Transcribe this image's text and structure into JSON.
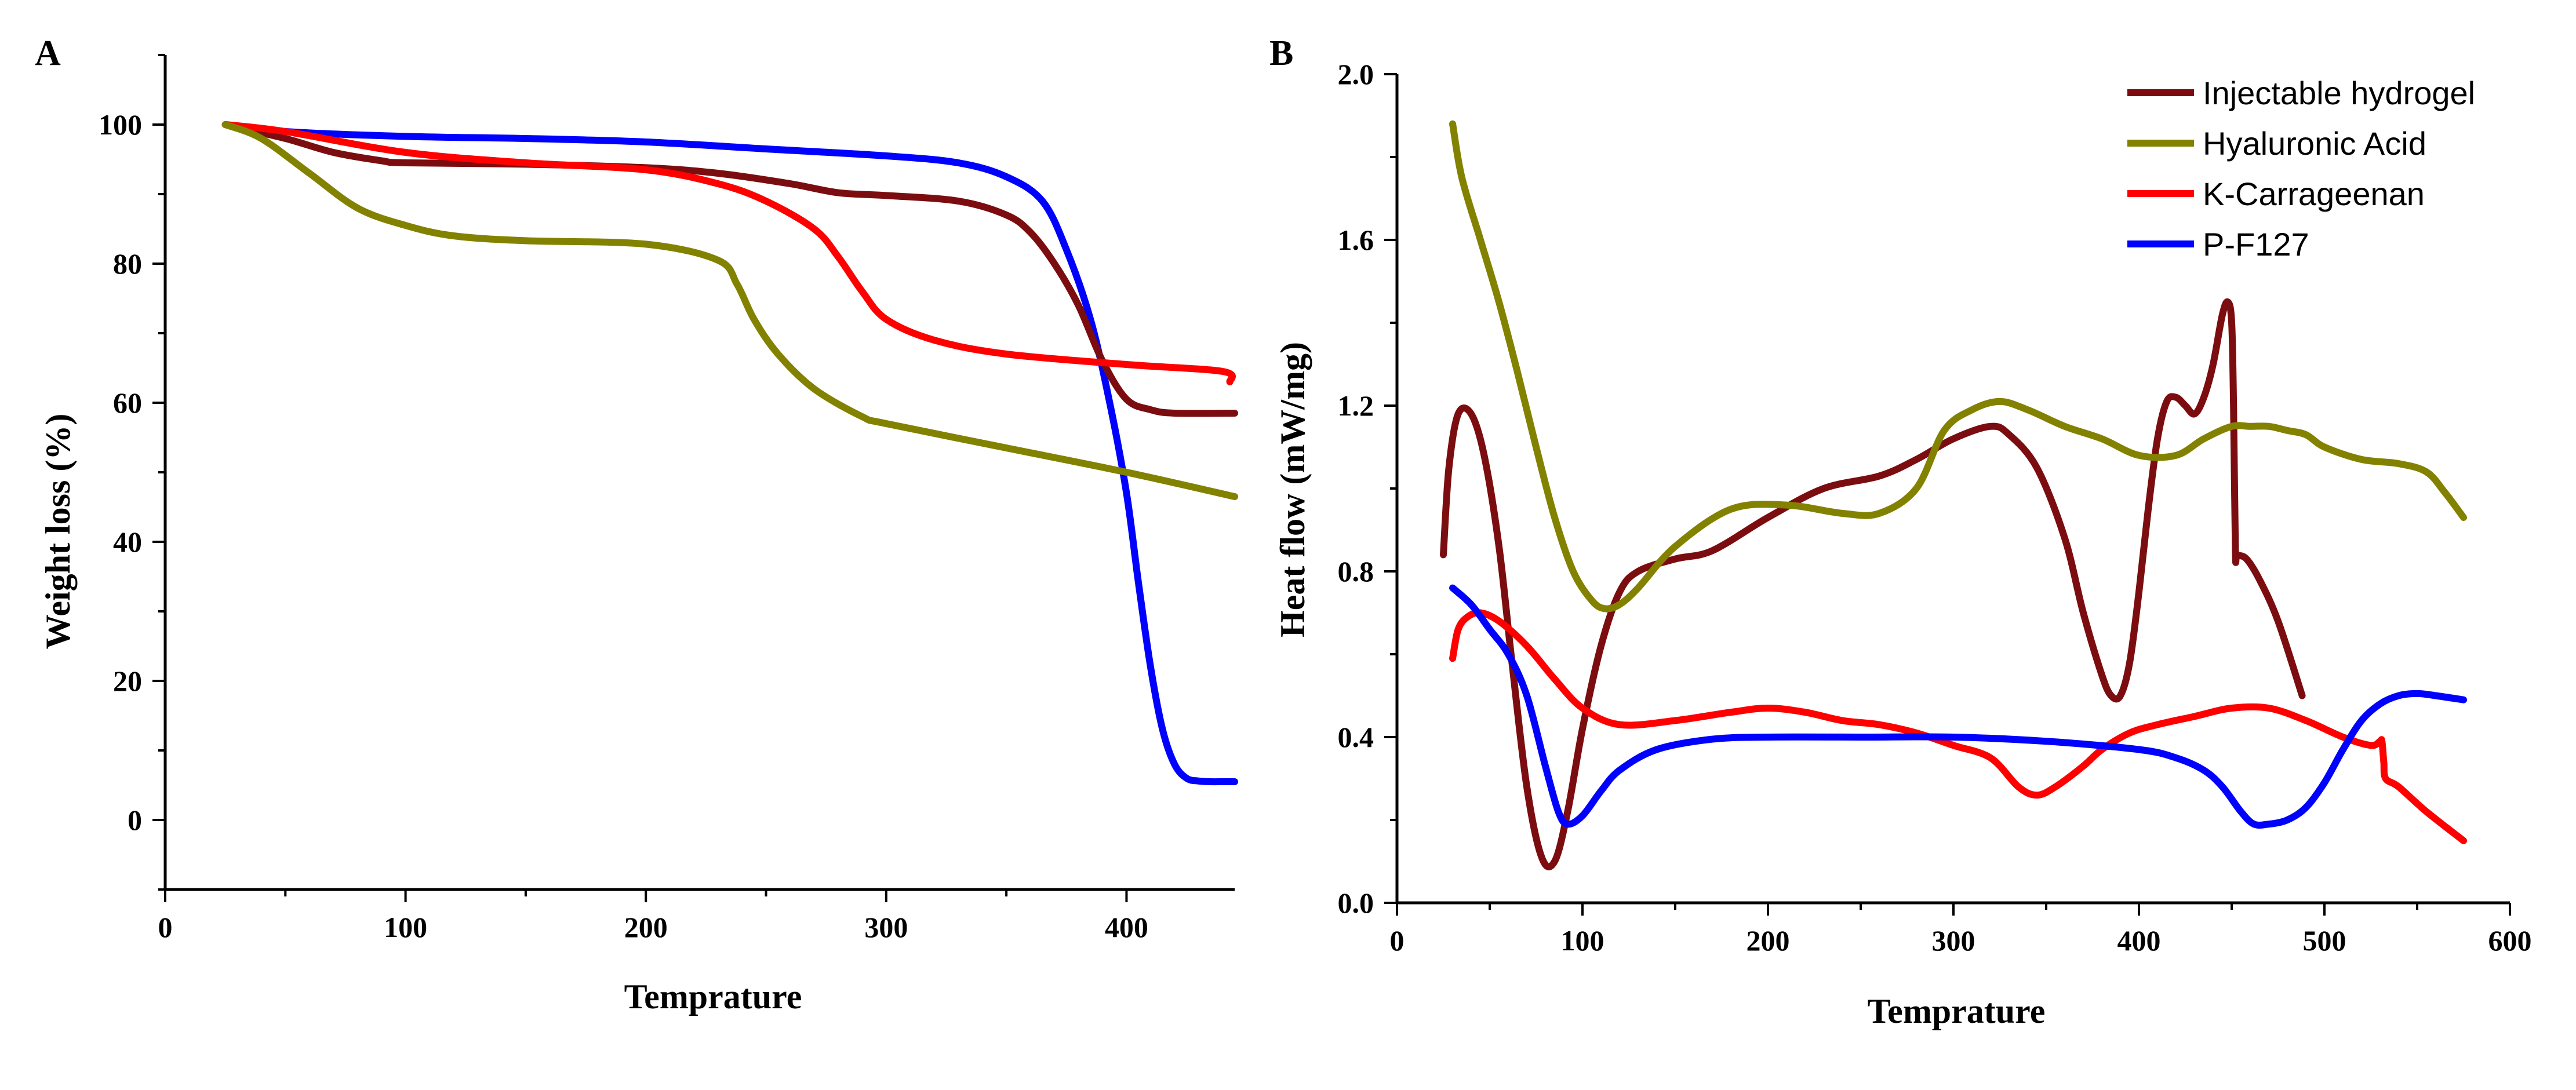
{
  "chart_data": [
    {
      "panel": "A",
      "type": "line",
      "title": "",
      "xlabel": "Temprature",
      "ylabel": "Weight loss (%)",
      "xlim": [
        0,
        445
      ],
      "ylim": [
        -10,
        110
      ],
      "xticks": [
        0,
        100,
        200,
        300,
        400
      ],
      "yticks": [
        0,
        20,
        40,
        60,
        80,
        100
      ],
      "series": [
        {
          "name": "P-F127",
          "color": "#0000ff",
          "x": [
            25,
            50,
            100,
            150,
            200,
            250,
            300,
            330,
            350,
            365,
            375,
            385,
            393,
            400,
            405,
            410,
            415,
            420,
            425,
            430,
            435,
            440,
            445
          ],
          "y": [
            100,
            99,
            98.3,
            98,
            97.5,
            96.5,
            95.5,
            94.5,
            92.5,
            89,
            82,
            72,
            60,
            47,
            34,
            22,
            13,
            8,
            6,
            5.6,
            5.5,
            5.5,
            5.5
          ]
        },
        {
          "name": "Injectable hydrogel",
          "color": "#7b0d10",
          "x": [
            25,
            50,
            70,
            90,
            100,
            150,
            200,
            230,
            260,
            280,
            300,
            330,
            350,
            360,
            370,
            380,
            390,
            400,
            410,
            420,
            445
          ],
          "y": [
            100,
            98,
            96,
            94.8,
            94.5,
            94.3,
            93.8,
            93,
            91.5,
            90.2,
            89.8,
            89,
            87,
            84.5,
            80,
            74,
            66,
            60.5,
            59,
            58.5,
            58.5
          ]
        },
        {
          "name": "K-Carrageenan",
          "color": "#ff0000",
          "x": [
            25,
            50,
            100,
            150,
            200,
            230,
            250,
            270,
            280,
            290,
            300,
            320,
            350,
            400,
            440,
            443
          ],
          "y": [
            100,
            99,
            96,
            94.5,
            93.5,
            91.5,
            89,
            85,
            81,
            76,
            72,
            69,
            67,
            65.5,
            64.5,
            63
          ]
        },
        {
          "name": "Hyaluronic Acid",
          "color": "#828200",
          "x": [
            25,
            40,
            60,
            80,
            100,
            120,
            150,
            200,
            230,
            238,
            245,
            255,
            270,
            290,
            300,
            350,
            400,
            445
          ],
          "y": [
            100,
            98,
            93,
            88,
            85.5,
            84,
            83.3,
            82.8,
            80.5,
            77,
            72,
            67,
            62,
            58,
            57,
            53.5,
            50,
            46.5
          ]
        }
      ]
    },
    {
      "panel": "B",
      "type": "line",
      "title": "",
      "xlabel": "Temprature",
      "ylabel": "Heat flow (mW/mg)",
      "xlim": [
        0,
        600
      ],
      "ylim": [
        0,
        2.0
      ],
      "xticks": [
        0,
        100,
        200,
        300,
        400,
        500,
        600
      ],
      "yticks": [
        "0.0",
        "0.4",
        "0.8",
        "1.2",
        "1.6",
        "2.0"
      ],
      "legend": {
        "position": "top-right",
        "entries": [
          "Injectable hydrogel",
          "Hyaluronic Acid",
          "K-Carrageenan",
          "P-F127"
        ]
      },
      "series": [
        {
          "name": "Injectable hydrogel",
          "color": "#7b0d10",
          "x": [
            25,
            28,
            33,
            40,
            47,
            55,
            62,
            70,
            78,
            85,
            92,
            100,
            110,
            120,
            130,
            150,
            170,
            200,
            230,
            260,
            280,
            300,
            320,
            330,
            345,
            360,
            370,
            380,
            385,
            390,
            395,
            400,
            405,
            410,
            415,
            420,
            425,
            430,
            435,
            440,
            445,
            448,
            450,
            451,
            452,
            453,
            458,
            465,
            475,
            488
          ],
          "y": [
            0.84,
            1.05,
            1.18,
            1.18,
            1.08,
            0.86,
            0.58,
            0.28,
            0.11,
            0.1,
            0.22,
            0.42,
            0.62,
            0.75,
            0.8,
            0.83,
            0.85,
            0.93,
            1.0,
            1.03,
            1.07,
            1.12,
            1.15,
            1.13,
            1.05,
            0.88,
            0.7,
            0.55,
            0.5,
            0.5,
            0.58,
            0.75,
            0.95,
            1.12,
            1.21,
            1.22,
            1.2,
            1.18,
            1.22,
            1.3,
            1.42,
            1.45,
            1.4,
            1.2,
            0.85,
            0.84,
            0.83,
            0.78,
            0.68,
            0.5
          ]
        },
        {
          "name": "Hyaluronic Acid",
          "color": "#828200",
          "x": [
            30,
            35,
            45,
            55,
            65,
            75,
            85,
            95,
            105,
            112,
            120,
            130,
            150,
            180,
            210,
            240,
            260,
            280,
            295,
            310,
            325,
            340,
            360,
            380,
            400,
            420,
            435,
            450,
            460,
            470,
            480,
            490,
            500,
            520,
            540,
            555,
            565,
            575
          ],
          "y": [
            1.88,
            1.75,
            1.6,
            1.45,
            1.28,
            1.1,
            0.93,
            0.8,
            0.73,
            0.71,
            0.72,
            0.76,
            0.86,
            0.95,
            0.96,
            0.94,
            0.94,
            1.0,
            1.14,
            1.19,
            1.21,
            1.19,
            1.15,
            1.12,
            1.08,
            1.08,
            1.12,
            1.15,
            1.15,
            1.15,
            1.14,
            1.13,
            1.1,
            1.07,
            1.06,
            1.04,
            0.99,
            0.93
          ]
        },
        {
          "name": "K-Carrageenan",
          "color": "#ff0000",
          "x": [
            30,
            33,
            38,
            45,
            55,
            70,
            85,
            100,
            120,
            150,
            180,
            200,
            220,
            240,
            260,
            280,
            300,
            320,
            335,
            345,
            355,
            370,
            380,
            395,
            410,
            430,
            450,
            470,
            490,
            510,
            525,
            530,
            531,
            532,
            533,
            540,
            555,
            575
          ],
          "y": [
            0.59,
            0.66,
            0.69,
            0.7,
            0.68,
            0.62,
            0.54,
            0.47,
            0.43,
            0.44,
            0.46,
            0.47,
            0.46,
            0.44,
            0.43,
            0.41,
            0.38,
            0.35,
            0.28,
            0.26,
            0.28,
            0.33,
            0.37,
            0.41,
            0.43,
            0.45,
            0.47,
            0.47,
            0.44,
            0.4,
            0.38,
            0.39,
            0.39,
            0.34,
            0.3,
            0.28,
            0.22,
            0.15
          ]
        },
        {
          "name": "P-F127",
          "color": "#0000ff",
          "x": [
            30,
            40,
            50,
            60,
            70,
            80,
            87,
            92,
            100,
            110,
            120,
            140,
            170,
            200,
            250,
            300,
            350,
            400,
            420,
            435,
            445,
            455,
            462,
            470,
            480,
            490,
            500,
            510,
            520,
            530,
            540,
            550,
            560,
            575
          ],
          "y": [
            0.76,
            0.72,
            0.66,
            0.6,
            0.5,
            0.33,
            0.22,
            0.19,
            0.21,
            0.27,
            0.32,
            0.37,
            0.395,
            0.4,
            0.4,
            0.4,
            0.39,
            0.37,
            0.35,
            0.32,
            0.28,
            0.22,
            0.19,
            0.19,
            0.2,
            0.23,
            0.29,
            0.37,
            0.44,
            0.48,
            0.5,
            0.505,
            0.5,
            0.49
          ]
        }
      ]
    }
  ]
}
